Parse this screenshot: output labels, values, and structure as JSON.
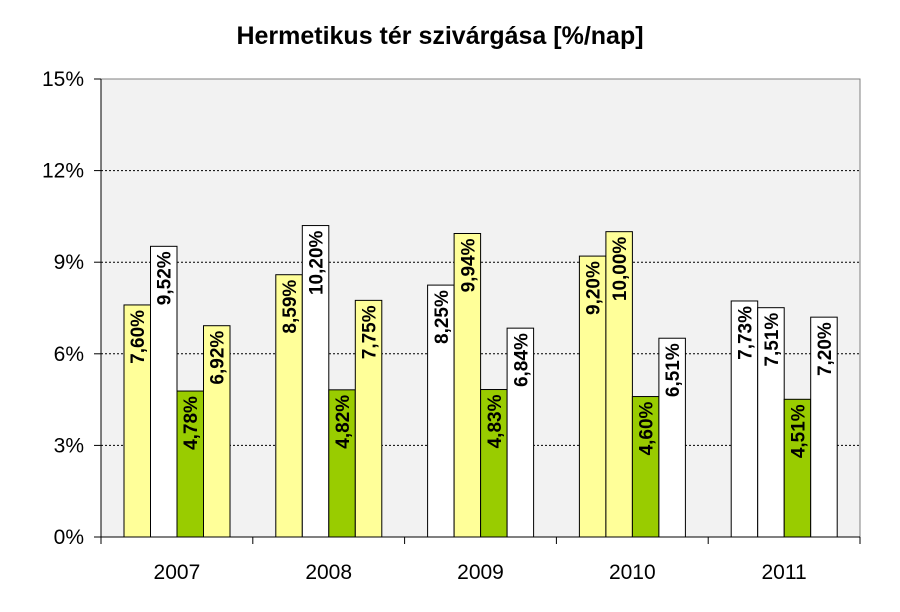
{
  "chart_data": {
    "type": "bar",
    "title": "Hermetikus tér szivárgása [%/nap]",
    "xlabel": "",
    "ylabel": "",
    "categories": [
      "2007",
      "2008",
      "2009",
      "2010",
      "2011"
    ],
    "bar_slots": 4,
    "ylim": [
      0,
      15
    ],
    "yticks": [
      0,
      3,
      6,
      9,
      12,
      15
    ],
    "ytick_labels": [
      "0%",
      "3%",
      "6%",
      "9%",
      "12%",
      "15%"
    ],
    "grid": true,
    "legend": "none",
    "colors": {
      "yellow": "#FFFF99",
      "white": "#FFFFFF",
      "green": "#99CC00",
      "plot_bg": "#F2F2F2"
    },
    "bars": [
      {
        "category": "2007",
        "slot": 0,
        "value": 7.6,
        "label": "7,60%",
        "color": "#FFFF99"
      },
      {
        "category": "2007",
        "slot": 1,
        "value": 9.52,
        "label": "9,52%",
        "color": "#FFFFFF"
      },
      {
        "category": "2007",
        "slot": 2,
        "value": 4.78,
        "label": "4,78%",
        "color": "#99CC00"
      },
      {
        "category": "2007",
        "slot": 3,
        "value": 6.92,
        "label": "6,92%",
        "color": "#FFFF99"
      },
      {
        "category": "2008",
        "slot": 0,
        "value": 8.59,
        "label": "8,59%",
        "color": "#FFFF99"
      },
      {
        "category": "2008",
        "slot": 1,
        "value": 10.2,
        "label": "10,20%",
        "color": "#FFFFFF"
      },
      {
        "category": "2008",
        "slot": 2,
        "value": 4.82,
        "label": "4,82%",
        "color": "#99CC00"
      },
      {
        "category": "2008",
        "slot": 3,
        "value": 7.75,
        "label": "7,75%",
        "color": "#FFFF99"
      },
      {
        "category": "2009",
        "slot": 0,
        "value": 8.25,
        "label": "8,25%",
        "color": "#FFFFFF"
      },
      {
        "category": "2009",
        "slot": 1,
        "value": 9.94,
        "label": "9,94%",
        "color": "#FFFF99"
      },
      {
        "category": "2009",
        "slot": 2,
        "value": 4.83,
        "label": "4,83%",
        "color": "#99CC00"
      },
      {
        "category": "2009",
        "slot": 3,
        "value": 6.84,
        "label": "6,84%",
        "color": "#FFFFFF"
      },
      {
        "category": "2010",
        "slot": 0,
        "value": 9.2,
        "label": "9,20%",
        "color": "#FFFF99"
      },
      {
        "category": "2010",
        "slot": 1,
        "value": 10.0,
        "label": "10,00%",
        "color": "#FFFF99"
      },
      {
        "category": "2010",
        "slot": 2,
        "value": 4.6,
        "label": "4,60%",
        "color": "#99CC00"
      },
      {
        "category": "2010",
        "slot": 3,
        "value": 6.51,
        "label": "6,51%",
        "color": "#FFFFFF"
      },
      {
        "category": "2011",
        "slot": 0,
        "value": 7.73,
        "label": "7,73%",
        "color": "#FFFFFF"
      },
      {
        "category": "2011",
        "slot": 1,
        "value": 7.51,
        "label": "7,51%",
        "color": "#FFFFFF"
      },
      {
        "category": "2011",
        "slot": 2,
        "value": 4.51,
        "label": "4,51%",
        "color": "#99CC00"
      },
      {
        "category": "2011",
        "slot": 3,
        "value": 7.2,
        "label": "7,20%",
        "color": "#FFFFFF"
      }
    ]
  }
}
